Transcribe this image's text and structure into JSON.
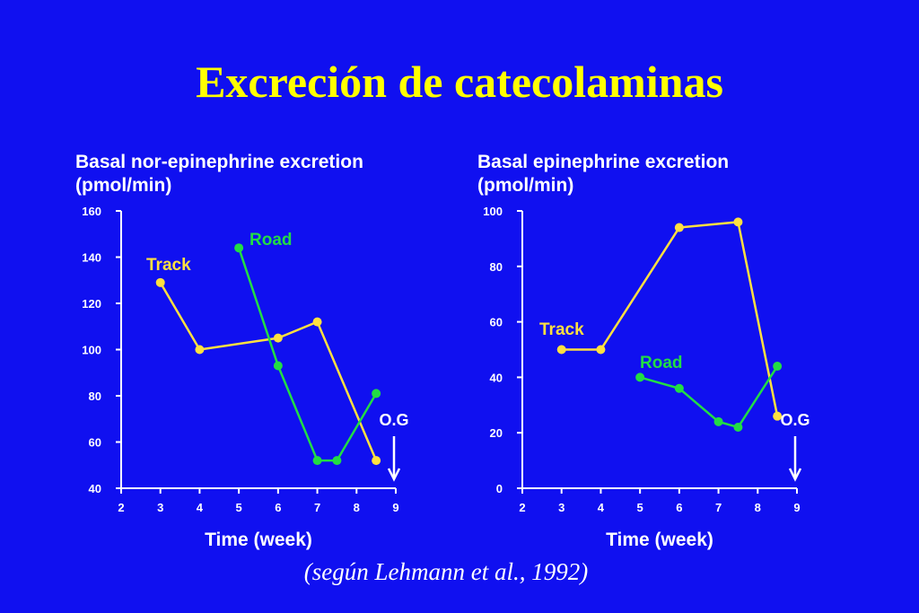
{
  "slide": {
    "title": "Excreción de catecolaminas",
    "citation": "(según Lehmann et al., 1992)"
  },
  "colors": {
    "background": "#1010f0",
    "title": "#ffff00",
    "track": "#ffe040",
    "road": "#22dd44",
    "axis": "#ffffff"
  },
  "chart_data": [
    {
      "type": "line",
      "title_lines": [
        "Basal nor-epinephrine excretion",
        "(pmol/min)"
      ],
      "xlabel": "Time (week)",
      "ylabel": "",
      "xlim": [
        2,
        9
      ],
      "ylim": [
        40,
        160
      ],
      "xticks": [
        2,
        3,
        4,
        5,
        6,
        7,
        8,
        9
      ],
      "yticks": [
        40,
        60,
        80,
        100,
        120,
        140,
        160
      ],
      "grid": false,
      "series": [
        {
          "name": "Track",
          "color": "#ffe040",
          "x": [
            3,
            4,
            6,
            7,
            8.5
          ],
          "y": [
            129,
            100,
            105,
            112,
            52
          ]
        },
        {
          "name": "Road",
          "color": "#22dd44",
          "x": [
            5,
            6,
            7,
            7.5,
            8.5
          ],
          "y": [
            144,
            93,
            52,
            52,
            81
          ]
        }
      ],
      "annotation": {
        "text": "O.G",
        "x": 9
      }
    },
    {
      "type": "line",
      "title_lines": [
        "Basal epinephrine excretion",
        "(pmol/min)"
      ],
      "xlabel": "Time (week)",
      "ylabel": "",
      "xlim": [
        2,
        9
      ],
      "ylim": [
        0,
        100
      ],
      "xticks": [
        2,
        3,
        4,
        5,
        6,
        7,
        8,
        9
      ],
      "yticks": [
        0,
        20,
        40,
        60,
        80,
        100
      ],
      "grid": false,
      "series": [
        {
          "name": "Track",
          "color": "#ffe040",
          "x": [
            3,
            4,
            6,
            7.5,
            8.5
          ],
          "y": [
            50,
            50,
            94,
            96,
            26
          ]
        },
        {
          "name": "Road",
          "color": "#22dd44",
          "x": [
            5,
            6,
            7,
            7.5,
            8.5
          ],
          "y": [
            40,
            36,
            24,
            22,
            44
          ]
        }
      ],
      "annotation": {
        "text": "O.G",
        "x": 9
      }
    }
  ]
}
